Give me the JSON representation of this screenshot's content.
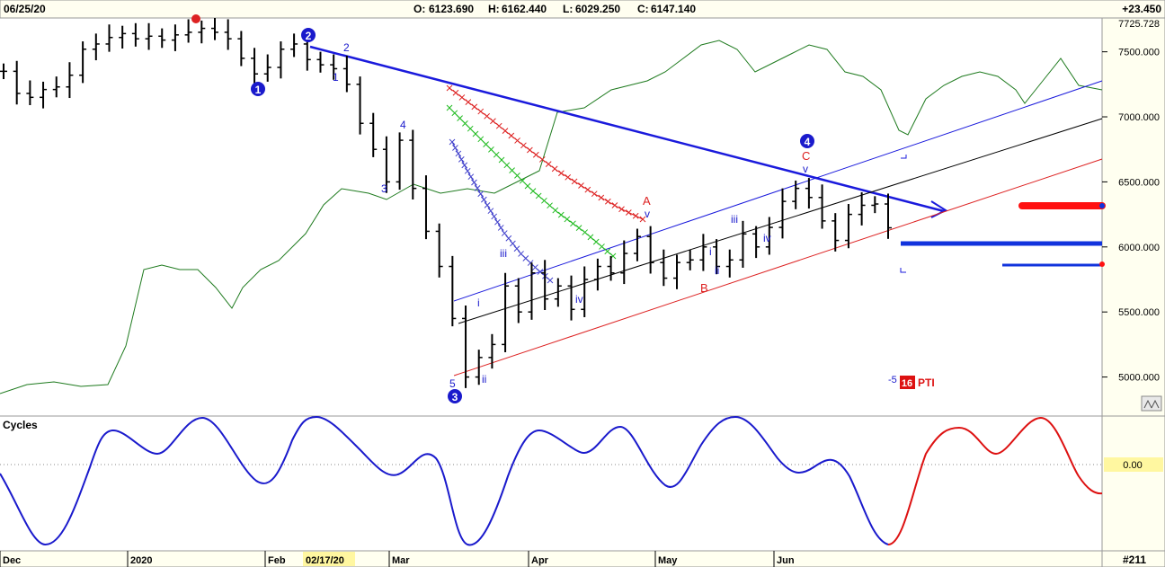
{
  "header": {
    "date": "06/25/20",
    "open_label": "O:",
    "open": "6123.690",
    "high_label": "H:",
    "high": "6162.440",
    "low_label": "L:",
    "low": "6029.250",
    "close_label": "C:",
    "close": "6147.140",
    "change": "+23.450"
  },
  "top_price_readout": "7725.728",
  "lower_panel": {
    "title": "Cycles",
    "zero_label": "0.00"
  },
  "x_axis": {
    "labels": [
      "Dec",
      "2020",
      "Feb",
      "02/17/20",
      "Mar",
      "Apr",
      "May",
      "Jun"
    ],
    "highlight": "02/17/20",
    "bar_count_label": "#211"
  },
  "indicator_label": {
    "value_left": "-5",
    "badge": "16",
    "name": "PTI"
  },
  "wave_labels": {
    "circled": [
      "1",
      "2",
      "3",
      "4"
    ],
    "blue": [
      "1",
      "2",
      "3",
      "4",
      "5",
      "i",
      "ii",
      "iii",
      "iv",
      "i",
      "ii",
      "iii",
      "iv",
      "v",
      "v"
    ],
    "red": [
      "A",
      "B",
      "C"
    ]
  },
  "colors": {
    "price_bars": "#000000",
    "trend_line": "#1a1adc",
    "green_oscillator": "#1e7a1e",
    "cycle_history": "#1a1acc",
    "cycle_projection": "#dd1111",
    "channel_red": "#dd2222",
    "target_red": "#ff1111",
    "target_blue": "#1133dd",
    "header_bg": "#fffef0",
    "axis_bg": "#fffff0",
    "zero_highlight_bg": "#fff7a0"
  },
  "chart_data": {
    "type": "bar",
    "instrument_ohlc_last": {
      "open": 6123.69,
      "high": 6162.44,
      "low": 6029.25,
      "close": 6147.14,
      "change": 23.45
    },
    "y_axis": {
      "ticks": [
        5000,
        5500,
        6000,
        6500,
        7000,
        7500
      ],
      "range": [
        4700,
        7760
      ]
    },
    "price_closes": [
      7350,
      7180,
      7150,
      7210,
      7230,
      7320,
      7520,
      7560,
      7610,
      7640,
      7600,
      7620,
      7590,
      7630,
      7650,
      7680,
      7650,
      7600,
      7450,
      7330,
      7380,
      7520,
      7560,
      7440,
      7400,
      7370,
      7250,
      6950,
      6750,
      6500,
      6820,
      6450,
      6120,
      5850,
      5450,
      5000,
      5150,
      5250,
      5700,
      5500,
      5800,
      5600,
      5700,
      5520,
      5750,
      5850,
      5800,
      5950,
      6080,
      5880,
      5760,
      5880,
      5900,
      6000,
      5850,
      5900,
      6100,
      6000,
      6150,
      6350,
      6450,
      6380,
      6200,
      6050,
      6250,
      6320,
      6330,
      6147
    ],
    "cycle_history": [
      0.4,
      -0.4,
      -1.0,
      -0.3,
      0.5,
      0.6,
      0.8,
      0.4,
      -0.5,
      -0.1,
      0.2,
      -1.0,
      -0.2,
      0.5,
      0.3,
      0.95,
      0.5,
      -0.4,
      -1.0
    ],
    "cycle_projection": [
      -1.0,
      -0.1,
      0.6,
      0.3,
      0.9,
      0.3,
      -0.3
    ],
    "overlays": [
      "descending trendline from wave 2 high",
      "rising channel (black/blue/red lines)",
      "green oscillator line",
      "target bars red and blue"
    ]
  }
}
